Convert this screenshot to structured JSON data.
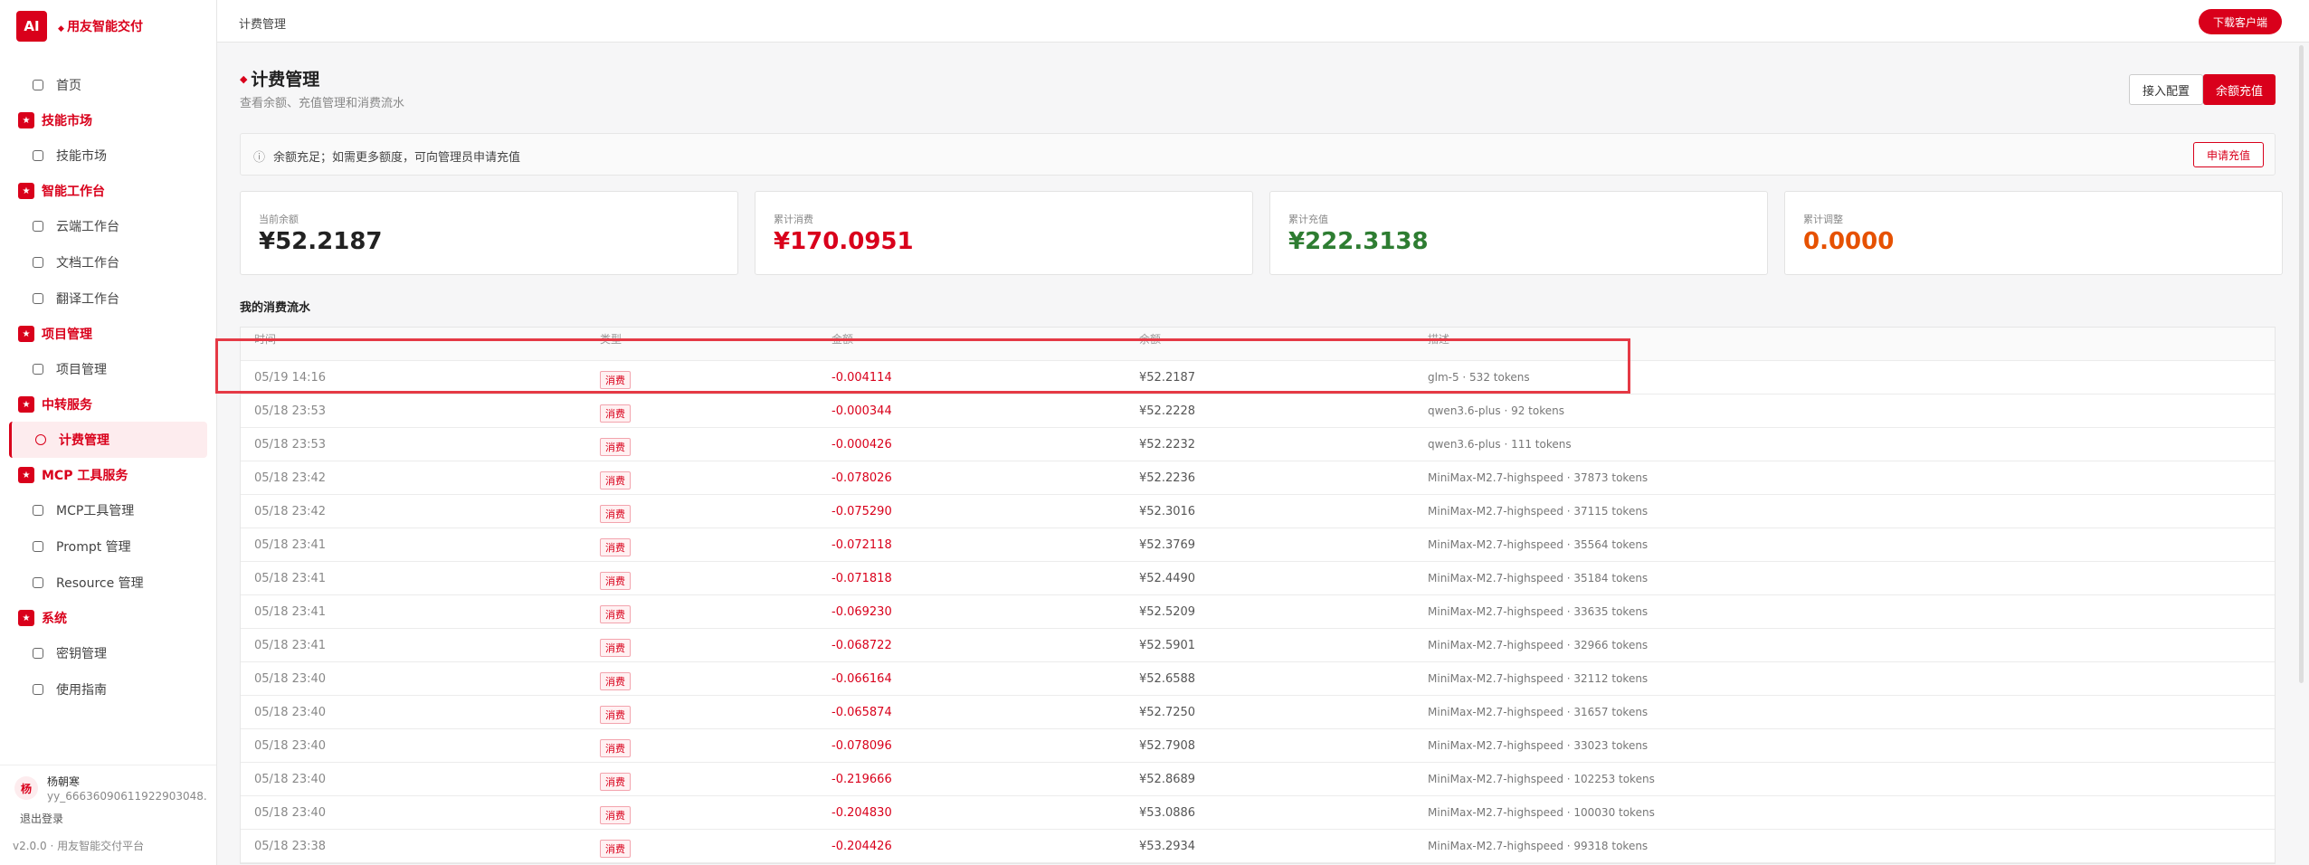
{
  "brand": {
    "logo": "AI",
    "name": "用友智能交付"
  },
  "nav": {
    "home": "首页",
    "groups": [
      {
        "title": "技能市场",
        "items": [
          "技能市场"
        ]
      },
      {
        "title": "智能工作台",
        "items": [
          "云端工作台",
          "文档工作台",
          "翻译工作台"
        ]
      },
      {
        "title": "项目管理",
        "items": [
          "项目管理"
        ]
      },
      {
        "title": "中转服务",
        "items": [
          "计费管理"
        ]
      },
      {
        "title": "MCP 工具服务",
        "items": [
          "MCP工具管理",
          "Prompt 管理",
          "Resource 管理"
        ]
      },
      {
        "title": "系统",
        "items": [
          "密钥管理",
          "使用指南"
        ]
      }
    ]
  },
  "user": {
    "avatar": "杨",
    "name": "杨朝寒",
    "id": "yy_66636090611922903048...",
    "logout": "退出登录",
    "version": "v2.0.0 · 用友智能交付平台"
  },
  "header": {
    "breadcrumb": "计费管理",
    "download": "下载客户端"
  },
  "page": {
    "title": "计费管理",
    "subtitle": "查看余额、充值管理和消费流水",
    "actions": [
      "接入配置",
      "余额充值"
    ]
  },
  "notice": {
    "text": "余额充足；如需更多额度，可向管理员申请充值",
    "button": "申请充值"
  },
  "stats": [
    {
      "label": "当前余额",
      "value": "¥52.2187"
    },
    {
      "label": "累计消费",
      "value": "¥170.0951"
    },
    {
      "label": "累计充值",
      "value": "¥222.3138"
    },
    {
      "label": "累计调整",
      "value": "0.0000"
    }
  ],
  "table": {
    "title": "我的消费流水",
    "columns": [
      "时间",
      "类型",
      "金额",
      "余额",
      "描述"
    ],
    "rows": [
      [
        "05/19 14:16",
        "消费",
        "-0.004114",
        "¥52.2187",
        "glm-5 · 532 tokens"
      ],
      [
        "05/18 23:53",
        "消费",
        "-0.000344",
        "¥52.2228",
        "qwen3.6-plus · 92 tokens"
      ],
      [
        "05/18 23:53",
        "消费",
        "-0.000426",
        "¥52.2232",
        "qwen3.6-plus · 111 tokens"
      ],
      [
        "05/18 23:42",
        "消费",
        "-0.078026",
        "¥52.2236",
        "MiniMax-M2.7-highspeed · 37873 tokens"
      ],
      [
        "05/18 23:42",
        "消费",
        "-0.075290",
        "¥52.3016",
        "MiniMax-M2.7-highspeed · 37115 tokens"
      ],
      [
        "05/18 23:41",
        "消费",
        "-0.072118",
        "¥52.3769",
        "MiniMax-M2.7-highspeed · 35564 tokens"
      ],
      [
        "05/18 23:41",
        "消费",
        "-0.071818",
        "¥52.4490",
        "MiniMax-M2.7-highspeed · 35184 tokens"
      ],
      [
        "05/18 23:41",
        "消费",
        "-0.069230",
        "¥52.5209",
        "MiniMax-M2.7-highspeed · 33635 tokens"
      ],
      [
        "05/18 23:41",
        "消费",
        "-0.068722",
        "¥52.5901",
        "MiniMax-M2.7-highspeed · 32966 tokens"
      ],
      [
        "05/18 23:40",
        "消费",
        "-0.066164",
        "¥52.6588",
        "MiniMax-M2.7-highspeed · 32112 tokens"
      ],
      [
        "05/18 23:40",
        "消费",
        "-0.065874",
        "¥52.7250",
        "MiniMax-M2.7-highspeed · 31657 tokens"
      ],
      [
        "05/18 23:40",
        "消费",
        "-0.078096",
        "¥52.7908",
        "MiniMax-M2.7-highspeed · 33023 tokens"
      ],
      [
        "05/18 23:40",
        "消费",
        "-0.219666",
        "¥52.8689",
        "MiniMax-M2.7-highspeed · 102253 tokens"
      ],
      [
        "05/18 23:40",
        "消费",
        "-0.204830",
        "¥53.0886",
        "MiniMax-M2.7-highspeed · 100030 tokens"
      ],
      [
        "05/18 23:38",
        "消费",
        "-0.204426",
        "¥53.2934",
        "MiniMax-M2.7-highspeed · 99318 tokens"
      ]
    ]
  }
}
